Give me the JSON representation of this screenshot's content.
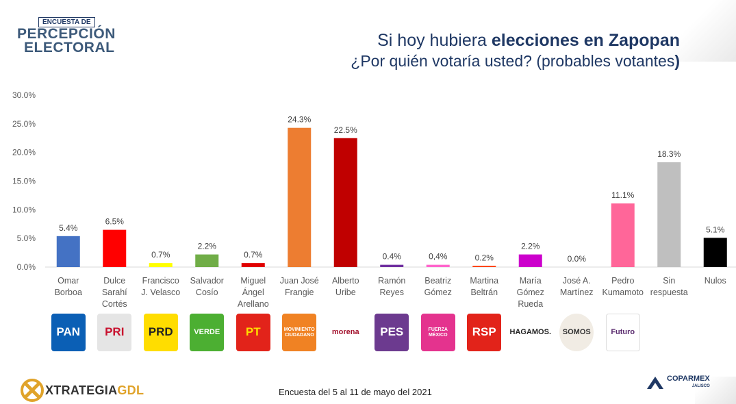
{
  "header": {
    "logo_top": "ENCUESTA DE",
    "logo_line2": "PERCEPCIÓN",
    "logo_line3": "ELECTORAL"
  },
  "title": {
    "line1_plain": "Si hoy hubiera ",
    "line1_bold": "elecciones en Zapopan",
    "line2_plain": "¿Por quién votaría usted? (probables votantes",
    "line2_bold": ")"
  },
  "footer": {
    "note": "Encuesta del 5 al 11 de mayo del 2021",
    "brand_left_a": "XTRATEGIA",
    "brand_left_b": "GDL",
    "brand_right": "COPARMEX",
    "brand_right_sub": "JALISCO"
  },
  "party_logos": [
    {
      "label": "PAN",
      "bg": "#0b5fb5",
      "fg": "#ffffff"
    },
    {
      "label": "PRI",
      "bg": "#e5e5e5",
      "fg": "#c8102e"
    },
    {
      "label": "PRD",
      "bg": "#ffdd00",
      "fg": "#222222"
    },
    {
      "label": "VERDE",
      "bg": "#4caf32",
      "fg": "#ffffff"
    },
    {
      "label": "PT",
      "bg": "#e2231a",
      "fg": "#ffdd00"
    },
    {
      "label": "MOVIMIENTO CIUDADANO",
      "bg": "#f08223",
      "fg": "#ffffff"
    },
    {
      "label": "morena",
      "bg": "#ffffff",
      "fg": "#a3122d"
    },
    {
      "label": "PES",
      "bg": "#6c3a8f",
      "fg": "#ffffff"
    },
    {
      "label": "FUERZA MÉXICO",
      "bg": "#e4338e",
      "fg": "#ffffff"
    },
    {
      "label": "RSP",
      "bg": "#e2231a",
      "fg": "#ffffff"
    },
    {
      "label": "HAGAMOS.",
      "bg": "#ffffff",
      "fg": "#222222"
    },
    {
      "label": "SOMOS",
      "bg": "#f1ece4",
      "fg": "#333333"
    },
    {
      "label": "Futuro",
      "bg": "#ffffff",
      "fg": "#5b2c6f"
    }
  ],
  "chart_data": {
    "type": "bar",
    "ylim": [
      0,
      30
    ],
    "yticks": [
      "0.0%",
      "5.0%",
      "10.0%",
      "15.0%",
      "20.0%",
      "25.0%",
      "30.0%"
    ],
    "grid": false,
    "categories": [
      [
        "Omar",
        "Borboa"
      ],
      [
        "Dulce",
        "Sarahí",
        "Cortés"
      ],
      [
        "Francisco",
        "J. Velasco"
      ],
      [
        "Salvador",
        "Cosío"
      ],
      [
        "Miguel",
        "Ángel",
        "Arellano"
      ],
      [
        "Juan José",
        "Frangie"
      ],
      [
        "Alberto",
        "Uribe"
      ],
      [
        "Ramón",
        "Reyes"
      ],
      [
        "Beatriz",
        "Gómez"
      ],
      [
        "Martina",
        "Beltrán"
      ],
      [
        "María",
        "Gómez",
        "Rueda"
      ],
      [
        "José A.",
        "Martínez"
      ],
      [
        "Pedro",
        "Kumamoto"
      ],
      [
        "Sin",
        "respuesta"
      ],
      [
        "Nulos"
      ]
    ],
    "values": [
      5.4,
      6.5,
      0.7,
      2.2,
      0.7,
      24.3,
      22.5,
      0.4,
      0.4,
      0.2,
      2.2,
      0.0,
      11.1,
      18.3,
      5.1
    ],
    "labels": [
      "5.4%",
      "6.5%",
      "0.7%",
      "2.2%",
      "0.7%",
      "24.3%",
      "22.5%",
      "0.4%",
      "0,4%",
      "0.2%",
      "2.2%",
      "0.0%",
      "11.1%",
      "18.3%",
      "5.1%"
    ],
    "colors": [
      "#4472c4",
      "#ff0000",
      "#ffff00",
      "#70ad47",
      "#e00000",
      "#ed7d31",
      "#c00000",
      "#7030a0",
      "#ff66cc",
      "#ff3300",
      "#cc00cc",
      "#7f7f7f",
      "#ff6699",
      "#bfbfbf",
      "#000000"
    ]
  }
}
